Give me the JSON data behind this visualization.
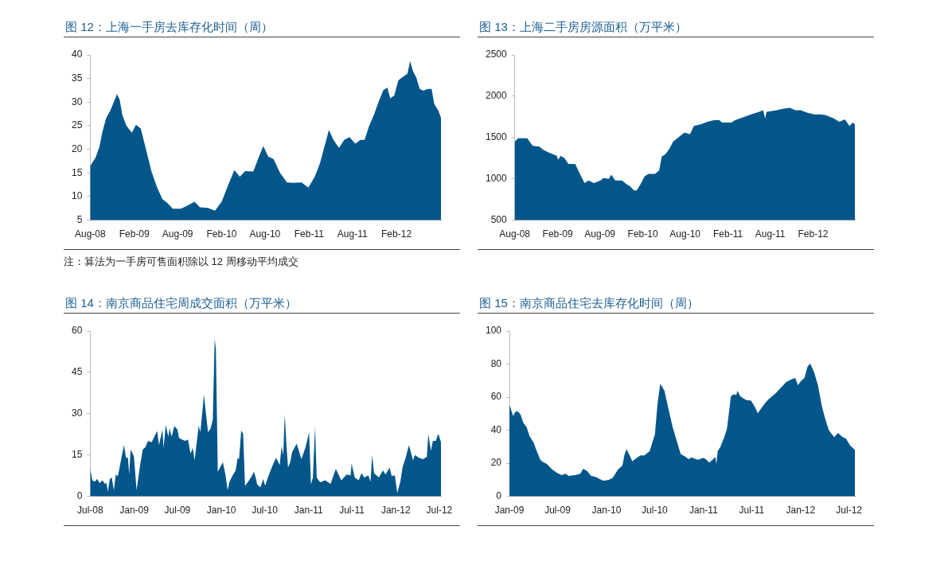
{
  "chart_data": [
    {
      "type": "area",
      "title": "图 12：上海一手房去库存化时间（周）",
      "color": "#03568a",
      "annotations": [
        "注：算法为一手房可售面积除以 12 周移动平均成交"
      ],
      "xlim": [
        "2008-08-01",
        "2012-08-05"
      ],
      "ylim": [
        5,
        40
      ],
      "yticks": [
        5,
        10,
        15,
        20,
        25,
        30,
        35,
        40
      ],
      "xticks": [
        {
          "value": "2008-08-01",
          "label": "Aug-08"
        },
        {
          "value": "2009-02-01",
          "label": "Feb-09"
        },
        {
          "value": "2009-08-01",
          "label": "Aug-09"
        },
        {
          "value": "2010-02-01",
          "label": "Feb-10"
        },
        {
          "value": "2010-08-01",
          "label": "Aug-10"
        },
        {
          "value": "2011-02-01",
          "label": "Feb-11"
        },
        {
          "value": "2011-08-01",
          "label": "Aug-11"
        },
        {
          "value": "2012-02-01",
          "label": "Feb-12"
        }
      ],
      "x": [
        "2008-08-01",
        "2008-08-23",
        "2008-09-09",
        "2008-09-20",
        "2008-10-07",
        "2008-10-24",
        "2008-11-04",
        "2008-11-21",
        "2008-12-02",
        "2008-12-13",
        "2008-12-30",
        "2009-01-22",
        "2009-02-08",
        "2009-02-28",
        "2009-03-22",
        "2009-04-14",
        "2009-05-06",
        "2009-05-29",
        "2009-06-20",
        "2009-07-12",
        "2009-08-15",
        "2009-09-08",
        "2009-10-11",
        "2009-11-02",
        "2009-12-06",
        "2010-01-04",
        "2010-02-01",
        "2010-02-28",
        "2010-03-26",
        "2010-04-18",
        "2010-05-10",
        "2010-06-13",
        "2010-07-05",
        "2010-07-25",
        "2010-08-14",
        "2010-09-06",
        "2010-10-03",
        "2010-11-01",
        "2010-11-28",
        "2011-01-01",
        "2011-01-29",
        "2011-02-25",
        "2011-03-19",
        "2011-04-05",
        "2011-04-25",
        "2011-05-14",
        "2011-06-06",
        "2011-06-28",
        "2011-07-20",
        "2011-08-13",
        "2011-09-04",
        "2011-09-21",
        "2011-10-08",
        "2011-10-30",
        "2011-11-22",
        "2011-12-08",
        "2011-12-25",
        "2012-01-06",
        "2012-01-23",
        "2012-02-09",
        "2012-02-26",
        "2012-03-18",
        "2012-03-29",
        "2012-04-10",
        "2012-04-24",
        "2012-05-08",
        "2012-05-24",
        "2012-06-10",
        "2012-06-27",
        "2012-07-08",
        "2012-07-25",
        "2012-08-05"
      ],
      "values": [
        16.5,
        18.2,
        20.6,
        23.5,
        26.7,
        28.2,
        29.6,
        31.7,
        30.5,
        27.3,
        25,
        23.5,
        25.2,
        24.4,
        20,
        15.3,
        12.1,
        9.5,
        8.6,
        7.4,
        7.4,
        8,
        8.9,
        7.7,
        7.6,
        7,
        8.9,
        12.4,
        15.6,
        14.2,
        15.4,
        15.3,
        18.2,
        20.7,
        18.5,
        17.9,
        15,
        13,
        12.9,
        13,
        11.9,
        14.2,
        17.1,
        20.3,
        24.1,
        22,
        20.3,
        22,
        22.6,
        21.2,
        22,
        22,
        24.7,
        27.3,
        30.5,
        32.5,
        33.1,
        30.8,
        31.4,
        34.6,
        35.3,
        36,
        38.7,
        36.6,
        35.2,
        32.8,
        32.4,
        32.8,
        32.8,
        29.6,
        28.2,
        26.7
      ]
    },
    {
      "type": "area",
      "title": "图 13：上海二手房房源面积（万平米）",
      "color": "#03568a",
      "xlim": [
        "2008-08-01",
        "2012-07-29"
      ],
      "ylim": [
        500,
        2500
      ],
      "yticks": [
        500,
        1000,
        1500,
        2000,
        2500
      ],
      "xticks": [
        {
          "value": "2008-08-01",
          "label": "Aug-08"
        },
        {
          "value": "2009-02-01",
          "label": "Feb-09"
        },
        {
          "value": "2009-08-01",
          "label": "Aug-09"
        },
        {
          "value": "2010-02-01",
          "label": "Feb-10"
        },
        {
          "value": "2010-08-01",
          "label": "Aug-10"
        },
        {
          "value": "2011-02-01",
          "label": "Feb-11"
        },
        {
          "value": "2011-08-01",
          "label": "Aug-11"
        },
        {
          "value": "2012-02-01",
          "label": "Feb-12"
        }
      ],
      "x": [
        "2008-08-01",
        "2008-08-15",
        "2008-09-24",
        "2008-09-29",
        "2008-10-17",
        "2008-11-15",
        "2008-12-01",
        "2008-12-24",
        "2009-01-28",
        "2009-02-03",
        "2009-02-14",
        "2009-03-02",
        "2009-03-19",
        "2009-04-17",
        "2009-05-04",
        "2009-05-27",
        "2009-06-13",
        "2009-07-06",
        "2009-08-04",
        "2009-08-16",
        "2009-09-08",
        "2009-09-19",
        "2009-10-06",
        "2009-11-04",
        "2009-11-21",
        "2009-12-08",
        "2009-12-25",
        "2010-01-06",
        "2010-01-23",
        "2010-02-09",
        "2010-02-25",
        "2010-03-25",
        "2010-04-12",
        "2010-04-23",
        "2010-05-10",
        "2010-05-27",
        "2010-06-11",
        "2010-07-07",
        "2010-07-30",
        "2010-08-22",
        "2010-09-08",
        "2010-10-07",
        "2010-11-05",
        "2010-12-03",
        "2010-12-26",
        "2011-01-07",
        "2011-02-16",
        "2011-03-03",
        "2011-04-01",
        "2011-05-11",
        "2011-06-15",
        "2011-07-02",
        "2011-07-10",
        "2011-07-17",
        "2011-08-29",
        "2011-09-27",
        "2011-10-25",
        "2011-11-17",
        "2011-12-10",
        "2012-01-08",
        "2012-02-06",
        "2012-03-04",
        "2012-03-27",
        "2012-05-01",
        "2012-05-23",
        "2012-06-16",
        "2012-07-06",
        "2012-07-20",
        "2012-07-29"
      ],
      "values": [
        1450,
        1490,
        1490,
        1470,
        1400,
        1390,
        1350,
        1320,
        1280,
        1230,
        1280,
        1250,
        1180,
        1180,
        1080,
        950,
        980,
        950,
        980,
        1010,
        1000,
        1050,
        980,
        980,
        940,
        910,
        860,
        860,
        940,
        1030,
        1060,
        1060,
        1100,
        1270,
        1300,
        1370,
        1450,
        1510,
        1560,
        1540,
        1640,
        1660,
        1690,
        1710,
        1710,
        1680,
        1680,
        1710,
        1740,
        1780,
        1810,
        1830,
        1730,
        1810,
        1830,
        1850,
        1860,
        1830,
        1830,
        1800,
        1780,
        1780,
        1770,
        1730,
        1690,
        1720,
        1640,
        1680,
        1660
      ]
    },
    {
      "type": "area",
      "title": "图 14：南京商品住宅周成交面积（万平米）",
      "color": "#03568a",
      "xlim": [
        "2008-07-01",
        "2012-07-08"
      ],
      "ylim": [
        0,
        60
      ],
      "yticks": [
        0,
        15,
        30,
        45,
        60
      ],
      "xticks": [
        {
          "value": "2008-07-01",
          "label": "Jul-08"
        },
        {
          "value": "2009-01-01",
          "label": "Jan-09"
        },
        {
          "value": "2009-07-01",
          "label": "Jul-09"
        },
        {
          "value": "2010-01-01",
          "label": "Jan-10"
        },
        {
          "value": "2010-07-01",
          "label": "Jul-10"
        },
        {
          "value": "2011-01-01",
          "label": "Jan-11"
        },
        {
          "value": "2011-07-01",
          "label": "Jul-11"
        },
        {
          "value": "2012-01-01",
          "label": "Jan-12"
        },
        {
          "value": "2012-07-01",
          "label": "Jul-12"
        }
      ],
      "x": [
        "2008-07-01",
        "2008-07-10",
        "2008-07-21",
        "2008-07-29",
        "2008-08-10",
        "2008-08-21",
        "2008-09-01",
        "2008-09-07",
        "2008-09-13",
        "2008-09-21",
        "2008-09-29",
        "2008-10-08",
        "2008-10-16",
        "2008-10-25",
        "2008-11-04",
        "2008-11-19",
        "2008-11-28",
        "2008-12-06",
        "2008-12-11",
        "2008-12-17",
        "2008-12-31",
        "2009-01-11",
        "2009-01-26",
        "2009-02-06",
        "2009-02-17",
        "2009-02-28",
        "2009-03-15",
        "2009-04-07",
        "2009-04-15",
        "2009-04-29",
        "2009-05-04",
        "2009-05-13",
        "2009-05-24",
        "2009-05-29",
        "2009-06-07",
        "2009-06-18",
        "2009-07-01",
        "2009-07-08",
        "2009-08-02",
        "2009-08-14",
        "2009-08-25",
        "2009-09-03",
        "2009-09-11",
        "2009-09-28",
        "2009-10-05",
        "2009-10-20",
        "2009-11-06",
        "2009-11-17",
        "2009-11-26",
        "2009-12-04",
        "2009-12-09",
        "2009-12-17",
        "2010-01-07",
        "2010-01-18",
        "2010-01-27",
        "2010-02-04",
        "2010-02-19",
        "2010-03-02",
        "2010-03-10",
        "2010-03-16",
        "2010-03-25",
        "2010-04-02",
        "2010-04-10",
        "2010-04-27",
        "2010-05-08",
        "2010-05-17",
        "2010-05-23",
        "2010-05-31",
        "2010-06-14",
        "2010-06-25",
        "2010-07-03",
        "2010-07-18",
        "2010-08-04",
        "2010-08-18",
        "2010-09-02",
        "2010-09-10",
        "2010-09-17",
        "2010-09-23",
        "2010-10-01",
        "2010-10-07",
        "2010-10-16",
        "2010-10-24",
        "2010-11-12",
        "2010-12-02",
        "2010-12-19",
        "2011-01-03",
        "2011-01-11",
        "2011-01-19",
        "2011-01-28",
        "2011-02-04",
        "2011-02-18",
        "2011-03-11",
        "2011-04-03",
        "2011-04-25",
        "2011-05-18",
        "2011-06-09",
        "2011-06-26",
        "2011-06-30",
        "2011-07-13",
        "2011-07-30",
        "2011-08-10",
        "2011-08-22",
        "2011-09-08",
        "2011-09-17",
        "2011-09-24",
        "2011-10-02",
        "2011-10-22",
        "2011-11-08",
        "2011-11-19",
        "2011-12-06",
        "2011-12-15",
        "2011-12-28",
        "2012-01-07",
        "2012-01-20",
        "2012-01-29",
        "2012-02-11",
        "2012-02-25",
        "2012-03-04",
        "2012-03-13",
        "2012-03-21",
        "2012-04-07",
        "2012-04-24",
        "2012-05-10",
        "2012-05-16",
        "2012-05-27",
        "2012-06-04",
        "2012-06-16",
        "2012-06-27",
        "2012-07-08"
      ],
      "values": [
        9.9,
        5.8,
        5.3,
        6.3,
        4.8,
        5.8,
        4.5,
        4.8,
        1.7,
        6.3,
        6.8,
        2.2,
        7.9,
        7.3,
        11.9,
        18.6,
        14,
        14,
        7.9,
        17,
        14.5,
        2.2,
        11.4,
        17,
        17.8,
        20.1,
        19.6,
        23.7,
        18.6,
        24.2,
        17.6,
        25.9,
        21.6,
        24.7,
        21.6,
        25.5,
        24.2,
        21.1,
        20.1,
        20.6,
        15.5,
        17.6,
        13,
        25.7,
        23.2,
        36.9,
        23.2,
        24.7,
        27.8,
        57.3,
        53.3,
        8.9,
        12.4,
        7.9,
        2.2,
        5.3,
        7.9,
        9.4,
        14,
        13.5,
        23.9,
        22.7,
        3.8,
        5.8,
        7.3,
        8.9,
        7.3,
        4.3,
        3.3,
        6.3,
        3.8,
        7.6,
        11.4,
        14,
        11.4,
        18.1,
        15,
        29.8,
        17.6,
        10.4,
        12.4,
        16,
        19.1,
        13.5,
        17.8,
        23.2,
        4.3,
        6.8,
        25.2,
        6.8,
        5.1,
        5.8,
        4.5,
        9.9,
        5.8,
        7.9,
        7.6,
        11.9,
        6.8,
        5.8,
        8.4,
        6.8,
        7.6,
        5.3,
        15,
        8.4,
        6.8,
        9.4,
        7.9,
        10.4,
        7.3,
        7.6,
        1.2,
        5.3,
        10.4,
        14,
        18.6,
        16,
        13,
        15,
        14,
        13.5,
        14.3,
        22.7,
        16.5,
        20.1,
        20.1,
        22.7,
        19.6
      ]
    },
    {
      "type": "area",
      "title": "图 15：南京商品住宅去库存化时间（周）",
      "color": "#03568a",
      "xlim": [
        "2009-01-01",
        "2012-07-23"
      ],
      "ylim": [
        0,
        100
      ],
      "yticks": [
        0,
        20,
        40,
        60,
        80,
        100
      ],
      "xticks": [
        {
          "value": "2009-01-01",
          "label": "Jan-09"
        },
        {
          "value": "2009-07-01",
          "label": "Jul-09"
        },
        {
          "value": "2010-01-01",
          "label": "Jan-10"
        },
        {
          "value": "2010-07-01",
          "label": "Jul-10"
        },
        {
          "value": "2011-01-01",
          "label": "Jan-11"
        },
        {
          "value": "2011-07-01",
          "label": "Jul-11"
        },
        {
          "value": "2012-01-01",
          "label": "Jan-12"
        },
        {
          "value": "2012-07-01",
          "label": "Jul-12"
        }
      ],
      "x": [
        "2009-01-01",
        "2009-01-08",
        "2009-01-15",
        "2009-01-23",
        "2009-02-02",
        "2009-02-12",
        "2009-02-22",
        "2009-03-07",
        "2009-03-17",
        "2009-04-02",
        "2009-04-12",
        "2009-04-27",
        "2009-05-07",
        "2009-05-22",
        "2009-06-11",
        "2009-07-01",
        "2009-07-16",
        "2009-08-01",
        "2009-08-11",
        "2009-09-05",
        "2009-09-25",
        "2009-10-05",
        "2009-10-20",
        "2009-11-04",
        "2009-11-19",
        "2009-12-04",
        "2009-12-19",
        "2010-01-09",
        "2010-01-24",
        "2010-02-13",
        "2010-03-02",
        "2010-03-09",
        "2010-03-17",
        "2010-03-29",
        "2010-04-08",
        "2010-04-23",
        "2010-05-08",
        "2010-05-23",
        "2010-06-12",
        "2010-06-22",
        "2010-07-02",
        "2010-07-12",
        "2010-07-22",
        "2010-08-07",
        "2010-08-22",
        "2010-09-07",
        "2010-09-21",
        "2010-10-07",
        "2010-10-22",
        "2010-11-06",
        "2010-11-16",
        "2010-12-11",
        "2010-12-31",
        "2011-01-10",
        "2011-01-22",
        "2011-02-04",
        "2011-02-14",
        "2011-02-18",
        "2011-02-23",
        "2011-03-05",
        "2011-03-20",
        "2011-03-30",
        "2011-04-14",
        "2011-04-24",
        "2011-05-04",
        "2011-05-09",
        "2011-05-19",
        "2011-06-09",
        "2011-06-29",
        "2011-07-14",
        "2011-07-24",
        "2011-08-08",
        "2011-08-24",
        "2011-09-03",
        "2011-09-28",
        "2011-10-18",
        "2011-11-07",
        "2011-11-27",
        "2011-12-12",
        "2011-12-22",
        "2012-01-02",
        "2012-01-15",
        "2012-01-27",
        "2012-02-06",
        "2012-02-21",
        "2012-03-06",
        "2012-03-21",
        "2012-04-01",
        "2012-04-16",
        "2012-05-06",
        "2012-05-21",
        "2012-06-05",
        "2012-06-20",
        "2012-07-05",
        "2012-07-23"
      ],
      "values": [
        55.4,
        52,
        48.6,
        51.1,
        51.4,
        49.4,
        44.6,
        41.7,
        36.6,
        32.4,
        28.1,
        22.1,
        20.8,
        19.6,
        16.2,
        14,
        12.8,
        13.6,
        12.3,
        12.8,
        13.6,
        16.7,
        15.3,
        12.3,
        11.9,
        10.6,
        9.4,
        9.9,
        11.1,
        16.2,
        18.7,
        24.7,
        28.6,
        24.7,
        21.3,
        23,
        24.7,
        24.7,
        27.3,
        32.4,
        37.5,
        56.2,
        68.1,
        63.9,
        52.8,
        41.7,
        34.1,
        25.6,
        24.2,
        22.5,
        23.5,
        22.1,
        23.3,
        22.5,
        20.4,
        22.1,
        23.9,
        19.6,
        27.3,
        29.8,
        35.8,
        40.9,
        60.5,
        61.7,
        61.3,
        63.9,
        60.5,
        58.3,
        57.9,
        53.7,
        50.3,
        53.7,
        57.1,
        58.8,
        62.2,
        65.6,
        69,
        70.7,
        71.6,
        67.3,
        69.8,
        71.6,
        78.4,
        80.4,
        75,
        67.3,
        54.5,
        47.7,
        40,
        35.8,
        38.3,
        36.1,
        34.9,
        30.7,
        28.1
      ]
    }
  ]
}
